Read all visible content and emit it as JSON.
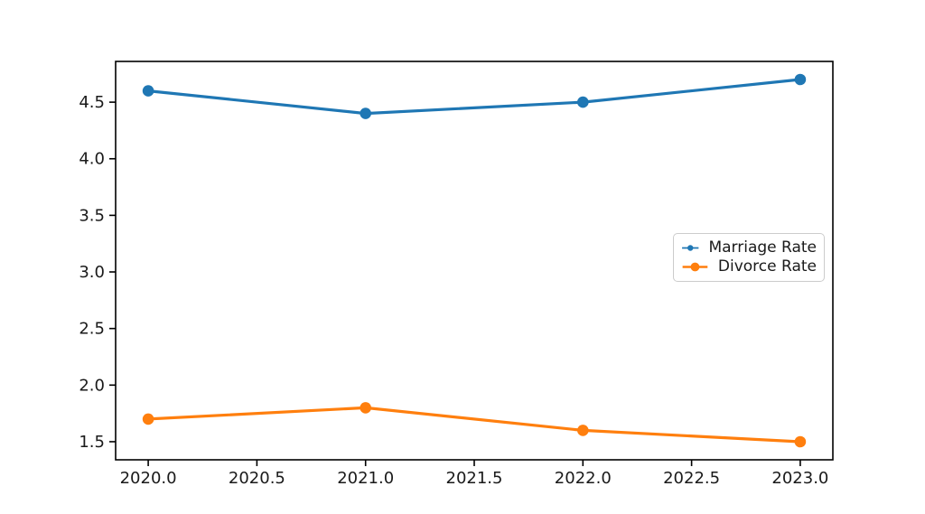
{
  "chart_data": {
    "type": "line",
    "title": "",
    "xlabel": "",
    "ylabel": "",
    "x": [
      2020.0,
      2021.0,
      2022.0,
      2023.0
    ],
    "series": [
      {
        "name": "Marriage Rate",
        "values": [
          4.6,
          4.4,
          4.5,
          4.7
        ],
        "color": "#1f77b4",
        "marker": "circle"
      },
      {
        "name": "Divorce Rate",
        "values": [
          1.7,
          1.8,
          1.6,
          1.5
        ],
        "color": "#ff7f0e",
        "marker": "circle"
      }
    ],
    "xlim": [
      2019.85,
      2023.15
    ],
    "ylim": [
      1.34,
      4.86
    ],
    "x_ticks": [
      {
        "value": 2020.0,
        "label": "2020.0"
      },
      {
        "value": 2020.5,
        "label": "2020.5"
      },
      {
        "value": 2021.0,
        "label": "2021.0"
      },
      {
        "value": 2021.5,
        "label": "2021.5"
      },
      {
        "value": 2022.0,
        "label": "2022.0"
      },
      {
        "value": 2022.5,
        "label": "2022.5"
      },
      {
        "value": 2023.0,
        "label": "2023.0"
      }
    ],
    "y_ticks": [
      {
        "value": 1.5,
        "label": "1.5"
      },
      {
        "value": 2.0,
        "label": "2.0"
      },
      {
        "value": 2.5,
        "label": "2.5"
      },
      {
        "value": 3.0,
        "label": "3.0"
      },
      {
        "value": 3.5,
        "label": "3.5"
      },
      {
        "value": 4.0,
        "label": "4.0"
      },
      {
        "value": 4.5,
        "label": "4.5"
      }
    ],
    "grid": false,
    "legend": {
      "position": "center right",
      "items": [
        "Marriage Rate",
        "Divorce Rate"
      ]
    },
    "colors": {
      "axis": "#000000",
      "tick_label": "#1a1a1a",
      "legend_border": "#cccccc",
      "background": "#ffffff"
    }
  }
}
